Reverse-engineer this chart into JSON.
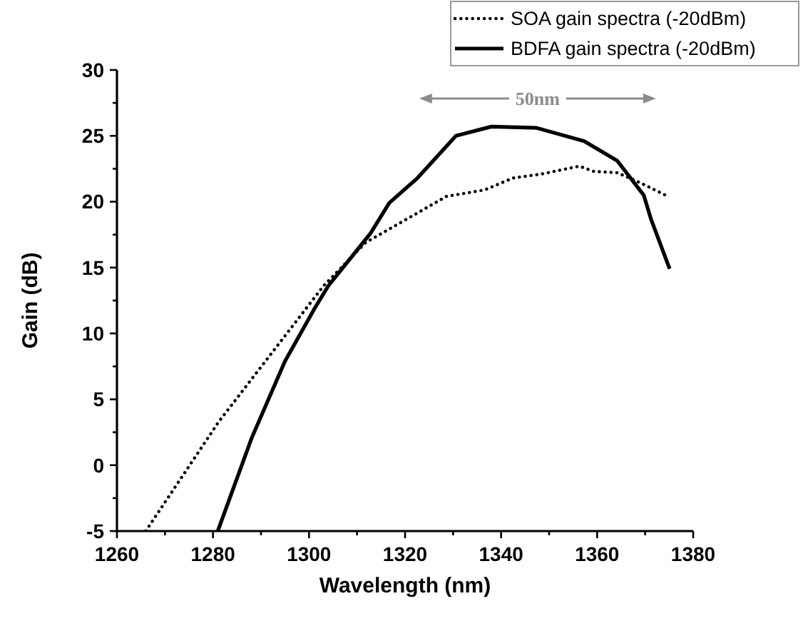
{
  "chart_data": {
    "type": "line",
    "xlabel": "Wavelength (nm)",
    "ylabel": "Gain (dB)",
    "xlim": [
      1260,
      1380
    ],
    "ylim": [
      -5,
      30
    ],
    "xticks": [
      1260,
      {
        "value": 1270,
        "label": null
      },
      1280,
      {
        "value": 1290,
        "label": null
      },
      1300,
      {
        "value": 1310,
        "label": null
      },
      1320,
      {
        "value": 1330,
        "label": null
      },
      1340,
      {
        "value": 1350,
        "label": null
      },
      1360,
      {
        "value": 1370,
        "label": null
      },
      1380
    ],
    "yticks": [
      -5,
      {
        "value": -2.5,
        "label": null
      },
      0,
      {
        "value": 2.5,
        "label": null
      },
      5,
      {
        "value": 7.5,
        "label": null
      },
      10,
      {
        "value": 12.5,
        "label": null
      },
      15,
      {
        "value": 17.5,
        "label": null
      },
      20,
      {
        "value": 22.5,
        "label": null
      },
      25,
      {
        "value": 27.5,
        "label": null
      },
      30
    ],
    "grid": false,
    "legend": "top right",
    "marker": "none",
    "annotations": [
      "50nm"
    ],
    "series": [
      {
        "name": "SOA gain spectra (-20dBm)",
        "color": "#000000",
        "line_style": "dotted",
        "x": [
          1266,
          1281.2,
          1303,
          1311.8,
          1328.6,
          1336.6,
          1342.5,
          1348.4,
          1356.3,
          1359.3,
          1364.2,
          1369.2,
          1374.2
        ],
        "values": [
          -5,
          3.3,
          13.6,
          16.9,
          20.4,
          20.9,
          21.8,
          22.1,
          22.7,
          22.3,
          22.2,
          21.4,
          20.5
        ]
      },
      {
        "name": "BDFA gain spectra (-20dBm)",
        "color": "#000000",
        "line_style": "solid",
        "x": [
          1281,
          1288.1,
          1295,
          1301,
          1304,
          1312.8,
          1316.7,
          1322.6,
          1330.6,
          1338,
          1347.4,
          1357.3,
          1364.2,
          1369.7,
          1371.2,
          1375.1
        ],
        "values": [
          -5,
          2.1,
          7.9,
          11.8,
          13.6,
          17.6,
          19.9,
          21.8,
          25,
          25.7,
          25.6,
          24.6,
          23.1,
          20.5,
          18.7,
          14.9
        ]
      }
    ]
  }
}
